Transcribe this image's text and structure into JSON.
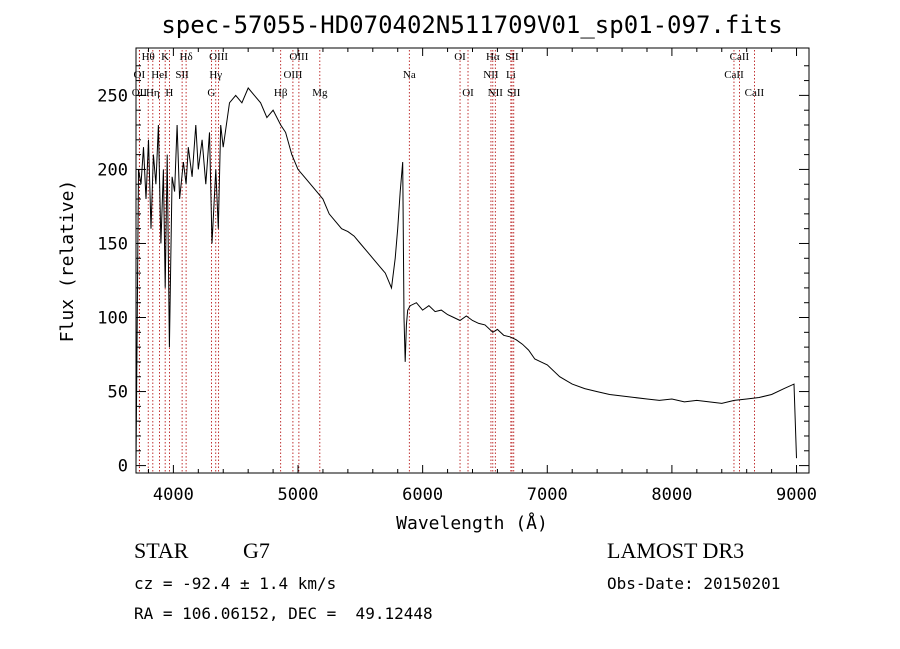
{
  "chart_data": {
    "type": "line",
    "title": "spec-57055-HD070402N511709V01_sp01-097.fits",
    "xlabel": "Wavelength (Å)",
    "ylabel": "Flux (relative)",
    "xlim": [
      3700,
      9100
    ],
    "ylim": [
      -5,
      282
    ],
    "x_ticks": [
      4000,
      5000,
      6000,
      7000,
      8000,
      9000
    ],
    "y_ticks": [
      0,
      50,
      100,
      150,
      200,
      250
    ],
    "grid": false,
    "legend": "none",
    "series": [
      {
        "x": [
          3700,
          3720,
          3740,
          3760,
          3780,
          3800,
          3820,
          3840,
          3860,
          3880,
          3900,
          3920,
          3934,
          3950,
          3968,
          3990,
          4010,
          4030,
          4050,
          4080,
          4102,
          4120,
          4150,
          4180,
          4200,
          4230,
          4260,
          4290,
          4310,
          4340,
          4360,
          4380,
          4400,
          4450,
          4500,
          4550,
          4600,
          4650,
          4700,
          4750,
          4800,
          4861,
          4900,
          4950,
          5000,
          5050,
          5100,
          5150,
          5200,
          5250,
          5300,
          5350,
          5400,
          5450,
          5500,
          5550,
          5600,
          5650,
          5700,
          5750,
          5780,
          5800,
          5820,
          5840,
          5850,
          5860,
          5870,
          5880,
          5900,
          5950,
          6000,
          6050,
          6100,
          6150,
          6200,
          6250,
          6300,
          6350,
          6400,
          6450,
          6500,
          6563,
          6600,
          6650,
          6700,
          6750,
          6800,
          6850,
          6900,
          6950,
          7000,
          7100,
          7200,
          7300,
          7400,
          7500,
          7600,
          7700,
          7800,
          7900,
          8000,
          8100,
          8200,
          8300,
          8400,
          8500,
          8600,
          8700,
          8800,
          8900,
          8980,
          9000
        ],
        "y": [
          0,
          200,
          190,
          215,
          180,
          220,
          160,
          210,
          190,
          230,
          150,
          200,
          120,
          210,
          80,
          195,
          185,
          230,
          180,
          205,
          190,
          215,
          195,
          230,
          200,
          220,
          190,
          225,
          150,
          200,
          160,
          230,
          215,
          245,
          250,
          245,
          255,
          250,
          245,
          235,
          240,
          230,
          225,
          210,
          200,
          195,
          190,
          185,
          180,
          170,
          165,
          160,
          158,
          155,
          150,
          145,
          140,
          135,
          130,
          120,
          140,
          160,
          185,
          205,
          100,
          70,
          95,
          105,
          108,
          110,
          105,
          108,
          104,
          105,
          102,
          100,
          98,
          101,
          98,
          96,
          95,
          90,
          92,
          88,
          87,
          85,
          82,
          78,
          72,
          70,
          68,
          60,
          55,
          52,
          50,
          48,
          47,
          46,
          45,
          44,
          45,
          43,
          44,
          43,
          42,
          44,
          45,
          46,
          48,
          52,
          55,
          5
        ]
      }
    ],
    "lines": [
      {
        "label": "Hθ",
        "x": 3798,
        "row": 0
      },
      {
        "label": "K",
        "x": 3934,
        "row": 0
      },
      {
        "label": "Hδ",
        "x": 4102,
        "row": 0
      },
      {
        "label": "OIII",
        "x": 4363,
        "row": 0
      },
      {
        "label": "OIII",
        "x": 5007,
        "row": 0
      },
      {
        "label": "OI",
        "x": 6300,
        "row": 0
      },
      {
        "label": "Hα",
        "x": 6563,
        "row": 0
      },
      {
        "label": "SII",
        "x": 6717,
        "row": 0
      },
      {
        "label": "CaII",
        "x": 8542,
        "row": 0
      },
      {
        "label": "OI",
        "x": 3727,
        "row": 1
      },
      {
        "label": "HeI",
        "x": 3889,
        "row": 1
      },
      {
        "label": "SII",
        "x": 4070,
        "row": 1
      },
      {
        "label": "Hγ",
        "x": 4340,
        "row": 1
      },
      {
        "label": "OIII",
        "x": 4959,
        "row": 1
      },
      {
        "label": "Na",
        "x": 5893,
        "row": 1
      },
      {
        "label": "NII",
        "x": 6548,
        "row": 1
      },
      {
        "label": "Li",
        "x": 6708,
        "row": 1
      },
      {
        "label": "CaII",
        "x": 8498,
        "row": 1
      },
      {
        "label": "OII",
        "x": 3727,
        "row": 2
      },
      {
        "label": "Hη",
        "x": 3835,
        "row": 2
      },
      {
        "label": "H",
        "x": 3968,
        "row": 2
      },
      {
        "label": "G",
        "x": 4305,
        "row": 2
      },
      {
        "label": "Hβ",
        "x": 4861,
        "row": 2
      },
      {
        "label": "Mg",
        "x": 5175,
        "row": 2
      },
      {
        "label": "OI",
        "x": 6364,
        "row": 2
      },
      {
        "label": "NII",
        "x": 6583,
        "row": 2
      },
      {
        "label": "SII",
        "x": 6731,
        "row": 2
      },
      {
        "label": "CaII",
        "x": 8662,
        "row": 2
      }
    ]
  },
  "info": {
    "class_label": "STAR",
    "subclass": "G7",
    "survey": "LAMOST DR3",
    "redshift": "cz = -92.4 ± 1.4 km/s",
    "obs_date": "Obs-Date: 20150201",
    "coords": "RA = 106.06152, DEC =  49.12448"
  }
}
